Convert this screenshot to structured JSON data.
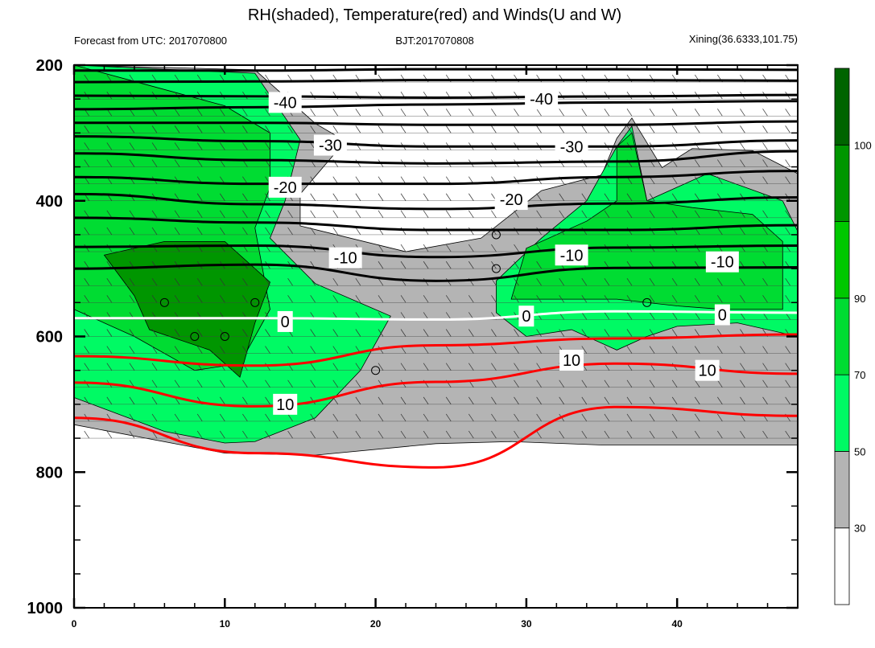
{
  "chart_data": {
    "type": "contour",
    "title": "RH(shaded), Temperature(red) and Winds(U and W)",
    "subtitle_left": "Forecast from UTC: 2017070800",
    "subtitle_center": "BJT:2017070808",
    "subtitle_right": "Xining(36.6333,101.75)",
    "x_ticks": [
      0,
      10,
      20,
      30,
      40
    ],
    "xlim": [
      0,
      48
    ],
    "y_ticks": [
      200,
      400,
      600,
      800,
      1000
    ],
    "ylim": [
      1000,
      200
    ],
    "y_reversed": true,
    "colorbar": {
      "levels": [
        30,
        50,
        70,
        90,
        100
      ],
      "colors": [
        "#ffffff",
        "#b4b4b4",
        "#00fa64",
        "#00dc32",
        "#00c800",
        "#009600",
        "#006400"
      ]
    },
    "temperature_contours": [
      {
        "level": -40,
        "color": "#000000",
        "y": [
          208,
          208,
          206,
          206,
          207
        ]
      },
      {
        "level": -40,
        "color": "#000000",
        "y": [
          225,
          224,
          222,
          222,
          223
        ]
      },
      {
        "level": -40,
        "color": "#000000",
        "y": [
          245,
          246,
          248,
          246,
          244
        ]
      },
      {
        "level": -40,
        "color": "#000000",
        "y": [
          265,
          262,
          258,
          255,
          253
        ]
      },
      {
        "level": -30,
        "color": "#000000",
        "y": [
          285,
          285,
          288,
          288,
          283
        ]
      },
      {
        "level": -30,
        "color": "#000000",
        "y": [
          305,
          312,
          320,
          320,
          311
        ]
      },
      {
        "level": -30,
        "color": "#000000",
        "y": [
          330,
          340,
          345,
          342,
          327
        ]
      },
      {
        "level": -20,
        "color": "#000000",
        "y": [
          365,
          375,
          375,
          365,
          356
        ]
      },
      {
        "level": -20,
        "color": "#000000",
        "y": [
          390,
          405,
          412,
          404,
          395
        ]
      },
      {
        "level": -10,
        "color": "#000000",
        "y": [
          425,
          432,
          443,
          443,
          436
        ]
      },
      {
        "level": -10,
        "color": "#000000",
        "y": [
          468,
          466,
          483,
          469,
          466
        ]
      },
      {
        "level": -10,
        "color": "#000000",
        "y": [
          500,
          494,
          518,
          499,
          498
        ]
      },
      {
        "level": 0,
        "color": "#ffffff",
        "y": [
          573,
          573,
          575,
          563,
          565
        ]
      },
      {
        "level": 10,
        "color": "#ff0000",
        "y": [
          629,
          643,
          613,
          603,
          597
        ]
      },
      {
        "level": 10,
        "color": "#ff0000",
        "y": [
          668,
          703,
          667,
          640,
          655
        ]
      },
      {
        "level": 10,
        "color": "#ff0000",
        "y": [
          720,
          772,
          793,
          704,
          717
        ]
      }
    ],
    "contour_labels": [
      {
        "text": "-40",
        "x": 14,
        "y": 255
      },
      {
        "text": "-40",
        "x": 31,
        "y": 250
      },
      {
        "text": "-30",
        "x": 17,
        "y": 318
      },
      {
        "text": "-30",
        "x": 33,
        "y": 320
      },
      {
        "text": "-20",
        "x": 14,
        "y": 380
      },
      {
        "text": "-20",
        "x": 29,
        "y": 398
      },
      {
        "text": "-10",
        "x": 18,
        "y": 484
      },
      {
        "text": "-10",
        "x": 33,
        "y": 480
      },
      {
        "text": "-10",
        "x": 43,
        "y": 490
      },
      {
        "text": "0",
        "x": 14,
        "y": 578
      },
      {
        "text": "0",
        "x": 30,
        "y": 570
      },
      {
        "text": "0",
        "x": 43,
        "y": 568
      },
      {
        "text": "10",
        "x": 14,
        "y": 700
      },
      {
        "text": "10",
        "x": 33,
        "y": 635
      },
      {
        "text": "10",
        "x": 42,
        "y": 650
      }
    ],
    "calm_wind_circles": [
      {
        "x": 6,
        "y": 550
      },
      {
        "x": 8,
        "y": 600
      },
      {
        "x": 10,
        "y": 600
      },
      {
        "x": 12,
        "y": 550
      },
      {
        "x": 20,
        "y": 650
      },
      {
        "x": 28,
        "y": 450
      },
      {
        "x": 28,
        "y": 500
      },
      {
        "x": 38,
        "y": 550
      }
    ],
    "rh_regions": [
      {
        "level": "gray",
        "color": "#b4b4b4",
        "points": [
          [
            0,
            200
          ],
          [
            12,
            207
          ],
          [
            16,
            286
          ],
          [
            18,
            312
          ],
          [
            15,
            390
          ],
          [
            15,
            437
          ],
          [
            22,
            475
          ],
          [
            27,
            455
          ],
          [
            31,
            385
          ],
          [
            35,
            362
          ],
          [
            36,
            308
          ],
          [
            37,
            278
          ],
          [
            39,
            351
          ],
          [
            41,
            323
          ],
          [
            45,
            326
          ],
          [
            48,
            360
          ],
          [
            48,
            760
          ],
          [
            35,
            760
          ],
          [
            29,
            755
          ],
          [
            24,
            758
          ],
          [
            16,
            775
          ],
          [
            10,
            772
          ],
          [
            0,
            730
          ]
        ]
      },
      {
        "level": "50-70",
        "color": "#00fa64",
        "points": [
          [
            0,
            200
          ],
          [
            12,
            212
          ],
          [
            15,
            310
          ],
          [
            14,
            400
          ],
          [
            13,
            455
          ],
          [
            16,
            522
          ],
          [
            21,
            570
          ],
          [
            19,
            650
          ],
          [
            16,
            720
          ],
          [
            12,
            755
          ],
          [
            10,
            757
          ],
          [
            6,
            740
          ],
          [
            0,
            690
          ]
        ]
      },
      {
        "level": "50-70",
        "color": "#00fa64",
        "points": [
          [
            28,
            565
          ],
          [
            28,
            518
          ],
          [
            31,
            455
          ],
          [
            34,
            400
          ],
          [
            36,
            320
          ],
          [
            37,
            290
          ],
          [
            38,
            400
          ],
          [
            42,
            360
          ],
          [
            47,
            400
          ],
          [
            48,
            445
          ],
          [
            48,
            600
          ],
          [
            44,
            580
          ],
          [
            40,
            585
          ],
          [
            38,
            600
          ],
          [
            36,
            620
          ],
          [
            33,
            590
          ],
          [
            30,
            600
          ]
        ]
      },
      {
        "level": "70-90",
        "color": "#00dc32",
        "points": [
          [
            0,
            200
          ],
          [
            5,
            230
          ],
          [
            10,
            260
          ],
          [
            13,
            300
          ],
          [
            13,
            380
          ],
          [
            12,
            440
          ],
          [
            13,
            560
          ],
          [
            11,
            640
          ],
          [
            8,
            650
          ],
          [
            4,
            600
          ],
          [
            0,
            560
          ]
        ]
      },
      {
        "level": "70-90",
        "color": "#00dc32",
        "points": [
          [
            29,
            545
          ],
          [
            30,
            470
          ],
          [
            34,
            430
          ],
          [
            36,
            400
          ],
          [
            36,
            320
          ],
          [
            37,
            300
          ],
          [
            38,
            400
          ],
          [
            41,
            410
          ],
          [
            45,
            420
          ],
          [
            47,
            460
          ],
          [
            47,
            560
          ],
          [
            43,
            560
          ],
          [
            40,
            555
          ],
          [
            36,
            545
          ]
        ]
      },
      {
        "level": "90-100",
        "color": "#009600",
        "points": [
          [
            2,
            480
          ],
          [
            6,
            460
          ],
          [
            10,
            460
          ],
          [
            13,
            520
          ],
          [
            12,
            580
          ],
          [
            11,
            660
          ],
          [
            9,
            620
          ],
          [
            5,
            590
          ],
          [
            4,
            540
          ]
        ]
      }
    ]
  }
}
